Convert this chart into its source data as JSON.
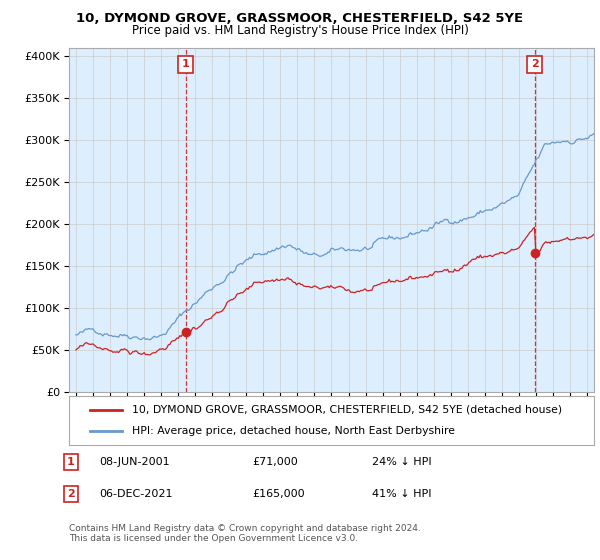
{
  "title1": "10, DYMOND GROVE, GRASSMOOR, CHESTERFIELD, S42 5YE",
  "title2": "Price paid vs. HM Land Registry's House Price Index (HPI)",
  "legend_line1": "10, DYMOND GROVE, GRASSMOOR, CHESTERFIELD, S42 5YE (detached house)",
  "legend_line2": "HPI: Average price, detached house, North East Derbyshire",
  "annotation1_label": "1",
  "annotation1_date": "08-JUN-2001",
  "annotation1_price": "£71,000",
  "annotation1_hpi": "24% ↓ HPI",
  "annotation2_label": "2",
  "annotation2_date": "06-DEC-2021",
  "annotation2_price": "£165,000",
  "annotation2_hpi": "41% ↓ HPI",
  "footer": "Contains HM Land Registry data © Crown copyright and database right 2024.\nThis data is licensed under the Open Government Licence v3.0.",
  "sale1_year": 2001.44,
  "sale1_price": 71000,
  "sale2_year": 2021.92,
  "sale2_price": 165000,
  "hpi_color": "#6699cc",
  "price_color": "#cc2222",
  "annotation_color": "#cc2222",
  "background_color": "#ffffff",
  "plot_bg_color": "#ddeeff",
  "grid_color": "#cccccc",
  "ylim": [
    0,
    410000
  ],
  "xlim_start": 1994.6,
  "xlim_end": 2025.4
}
